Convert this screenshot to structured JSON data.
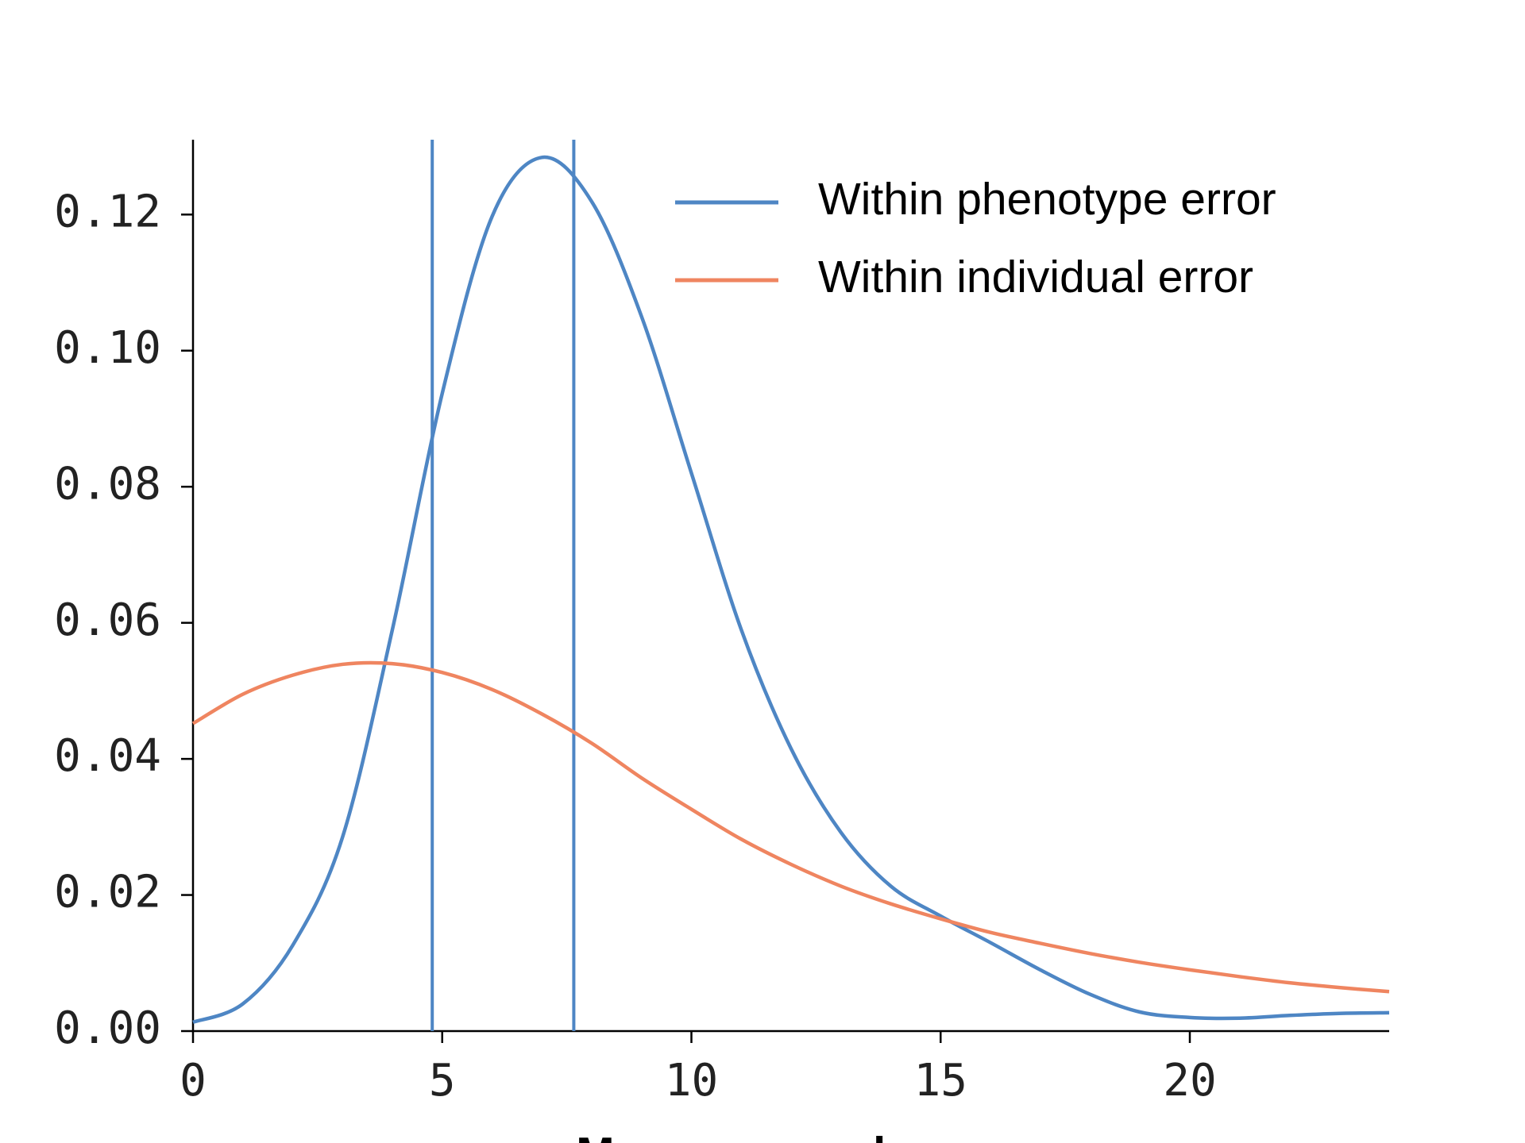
{
  "chart_data": {
    "type": "line",
    "x_label": "Mean squared error",
    "x": [
      0,
      1,
      2,
      3,
      4,
      5,
      6,
      7,
      8,
      9,
      10,
      11,
      12,
      13,
      14,
      15,
      16,
      17,
      18,
      19,
      20,
      21,
      22,
      23,
      24
    ],
    "series": [
      {
        "name": "Within phenotype error",
        "color": "#4e86c4",
        "values": [
          0.0013,
          0.004,
          0.0126,
          0.0285,
          0.059,
          0.0937,
          0.1197,
          0.1284,
          0.1219,
          0.105,
          0.082,
          0.059,
          0.0415,
          0.0292,
          0.0213,
          0.0169,
          0.013,
          0.009,
          0.0054,
          0.0028,
          0.002,
          0.0019,
          0.0023,
          0.0026,
          0.0027
        ]
      },
      {
        "name": "Within individual error",
        "color": "#ef8560",
        "values": [
          0.0452,
          0.0495,
          0.0523,
          0.0539,
          0.054,
          0.0527,
          0.0502,
          0.0466,
          0.0423,
          0.0372,
          0.0326,
          0.0282,
          0.0245,
          0.0213,
          0.0187,
          0.0165,
          0.0145,
          0.0129,
          0.0114,
          0.0101,
          0.009,
          0.008,
          0.0071,
          0.0064,
          0.0058
        ]
      }
    ],
    "vlines": [
      4.8,
      7.64
    ],
    "vline_color": "#4e86c4",
    "xlim": [
      0,
      24
    ],
    "ylim": [
      0,
      0.131
    ],
    "xticks": [
      0,
      5,
      10,
      15,
      20
    ],
    "yticks": [
      {
        "value": 0,
        "label": "0.00"
      },
      0.02,
      0.04,
      0.06,
      0.08,
      {
        "value": 0.1,
        "label": "0.10"
      },
      0.12
    ],
    "legend": "upper right",
    "grid": false
  }
}
